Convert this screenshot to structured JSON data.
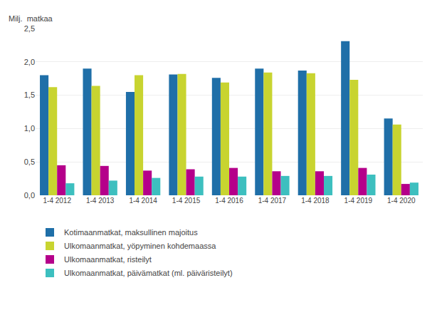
{
  "chart_data": {
    "type": "bar",
    "categories": [
      "1-4 2012",
      "1-4 2013",
      "1-4 2014",
      "1-4 2015",
      "1-4 2016",
      "1-4 2017",
      "1-4 2018",
      "1-4 2019",
      "1-4 2020"
    ],
    "series": [
      {
        "name": "Kotimaanmatkat, maksullinen majoitus",
        "color": "#1f6fa8",
        "values": [
          1.8,
          1.9,
          1.55,
          1.81,
          1.76,
          1.9,
          1.87,
          2.31,
          1.15
        ]
      },
      {
        "name": "Ulkomaanmatkat, yöpyminen kohdemaassa",
        "color": "#c8d430",
        "values": [
          1.62,
          1.64,
          1.8,
          1.82,
          1.69,
          1.84,
          1.83,
          1.73,
          1.06
        ]
      },
      {
        "name": "Ulkomaanmatkat, risteilyt",
        "color": "#b5008a",
        "values": [
          0.45,
          0.44,
          0.37,
          0.39,
          0.41,
          0.36,
          0.36,
          0.41,
          0.17
        ]
      },
      {
        "name": "Ulkomaanmatkat, päivämatkat (ml. päiväristeilyt)",
        "color": "#3dbfbf",
        "values": [
          0.18,
          0.22,
          0.26,
          0.28,
          0.28,
          0.29,
          0.29,
          0.31,
          0.19
        ]
      }
    ],
    "ylabel": "Milj.  matkaa",
    "ylim": [
      0,
      2.5
    ],
    "yticks": [
      {
        "value": 0.0,
        "label": "0,0"
      },
      {
        "value": 0.5,
        "label": "0,5"
      },
      {
        "value": 1.0,
        "label": "1,0"
      },
      {
        "value": 1.5,
        "label": "1,5"
      },
      {
        "value": 2.0,
        "label": "2,0"
      },
      {
        "value": 2.5,
        "label": "2,5"
      }
    ],
    "grid": true,
    "legend": "bottom"
  }
}
